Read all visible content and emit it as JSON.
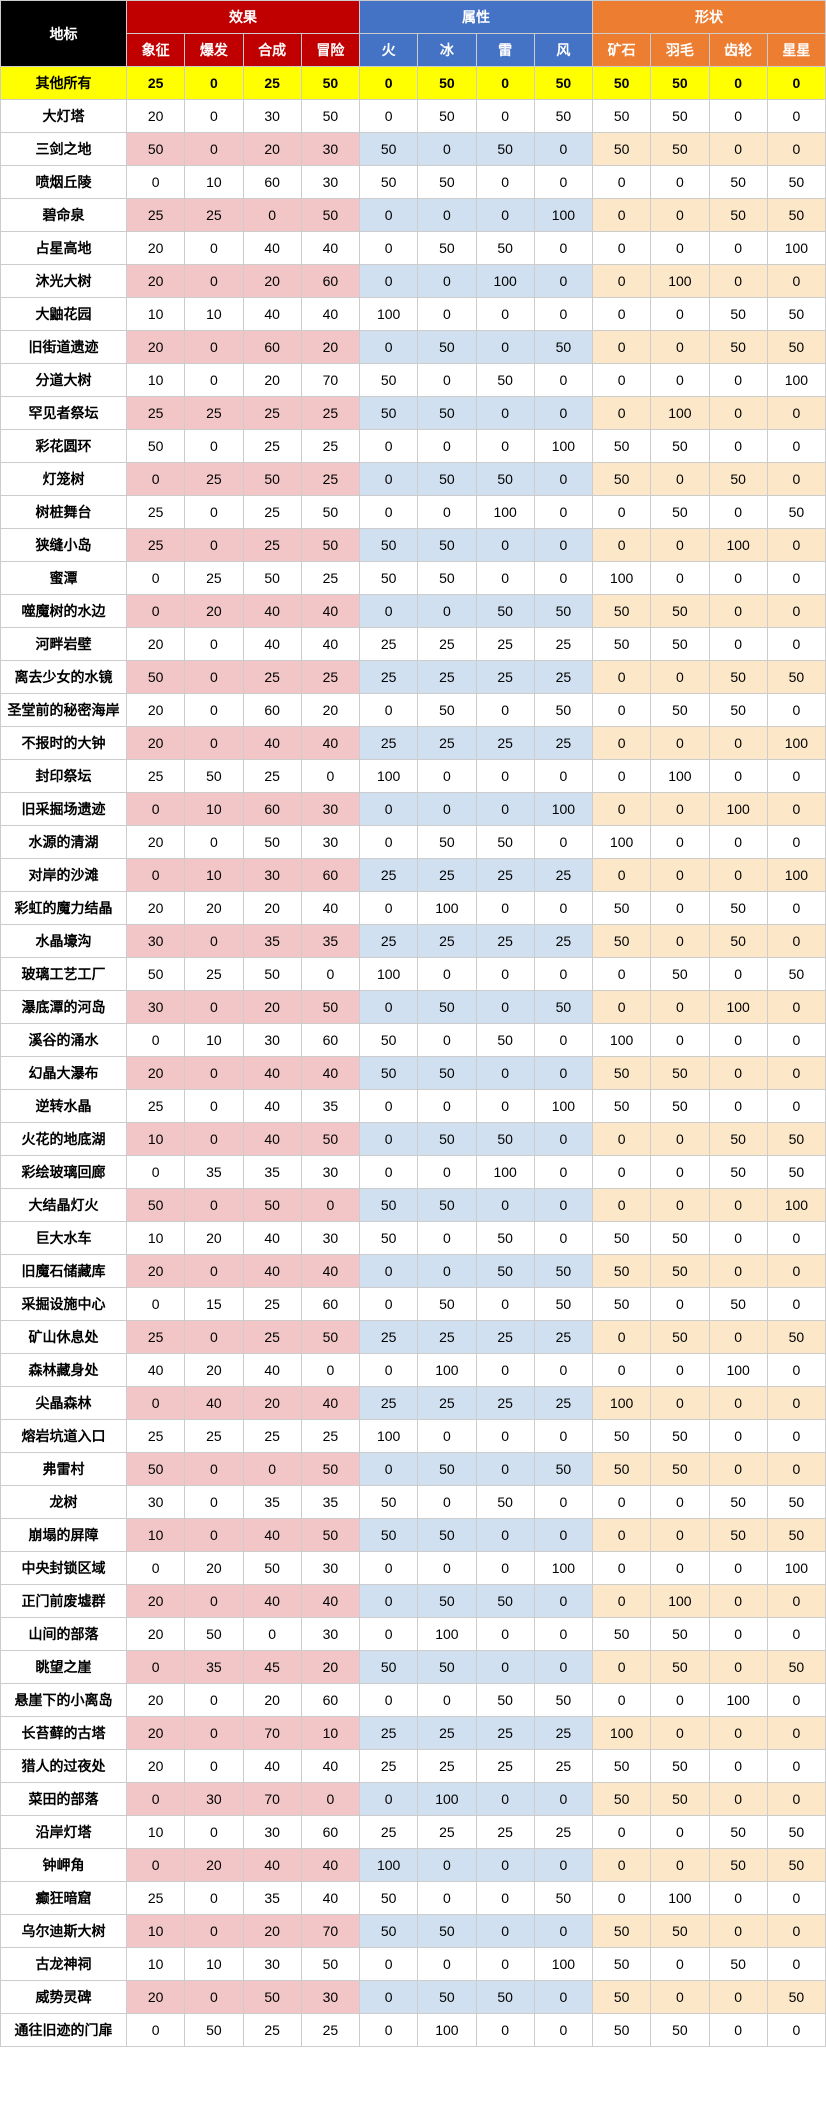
{
  "headers": {
    "landmark": "地标",
    "groups": [
      {
        "label": "效果",
        "class": "h-effect",
        "sub": [
          "象征",
          "爆发",
          "合成",
          "冒险"
        ],
        "subclass": "sub-effect"
      },
      {
        "label": "属性",
        "class": "h-attr",
        "sub": [
          "火",
          "冰",
          "雷",
          "风"
        ],
        "subclass": "sub-attr"
      },
      {
        "label": "形状",
        "class": "h-shape",
        "sub": [
          "矿石",
          "羽毛",
          "齿轮",
          "星星"
        ],
        "subclass": "sub-shape"
      }
    ]
  },
  "highlight_row": {
    "name": "其他所有",
    "v": [
      25,
      0,
      25,
      50,
      0,
      50,
      0,
      50,
      50,
      50,
      0,
      0
    ]
  },
  "rows": [
    {
      "name": "大灯塔",
      "v": [
        20,
        0,
        30,
        50,
        0,
        50,
        0,
        50,
        50,
        50,
        0,
        0
      ],
      "hl": false
    },
    {
      "name": "三剑之地",
      "v": [
        50,
        0,
        20,
        30,
        50,
        0,
        50,
        0,
        50,
        50,
        0,
        0
      ],
      "hl": true
    },
    {
      "name": "喷烟丘陵",
      "v": [
        0,
        10,
        60,
        30,
        50,
        50,
        0,
        0,
        0,
        0,
        50,
        50
      ],
      "hl": false
    },
    {
      "name": "碧命泉",
      "v": [
        25,
        25,
        0,
        50,
        0,
        0,
        0,
        100,
        0,
        0,
        50,
        50
      ],
      "hl": true
    },
    {
      "name": "占星高地",
      "v": [
        20,
        0,
        40,
        40,
        0,
        50,
        50,
        0,
        0,
        0,
        0,
        100
      ],
      "hl": false
    },
    {
      "name": "沐光大树",
      "v": [
        20,
        0,
        20,
        60,
        0,
        0,
        100,
        0,
        0,
        100,
        0,
        0
      ],
      "hl": true
    },
    {
      "name": "大鼬花园",
      "v": [
        10,
        10,
        40,
        40,
        100,
        0,
        0,
        0,
        0,
        0,
        50,
        50
      ],
      "hl": false
    },
    {
      "name": "旧街道遗迹",
      "v": [
        20,
        0,
        60,
        20,
        0,
        50,
        0,
        50,
        0,
        0,
        50,
        50
      ],
      "hl": true
    },
    {
      "name": "分道大树",
      "v": [
        10,
        0,
        20,
        70,
        50,
        0,
        50,
        0,
        0,
        0,
        0,
        100
      ],
      "hl": false
    },
    {
      "name": "罕见者祭坛",
      "v": [
        25,
        25,
        25,
        25,
        50,
        50,
        0,
        0,
        0,
        100,
        0,
        0
      ],
      "hl": true
    },
    {
      "name": "彩花圆环",
      "v": [
        50,
        0,
        25,
        25,
        0,
        0,
        0,
        100,
        50,
        50,
        0,
        0
      ],
      "hl": false
    },
    {
      "name": "灯笼树",
      "v": [
        0,
        25,
        50,
        25,
        0,
        50,
        50,
        0,
        50,
        0,
        50,
        0
      ],
      "hl": true
    },
    {
      "name": "树桩舞台",
      "v": [
        25,
        0,
        25,
        50,
        0,
        0,
        100,
        0,
        0,
        50,
        0,
        50
      ],
      "hl": false
    },
    {
      "name": "狭缝小岛",
      "v": [
        25,
        0,
        25,
        50,
        50,
        50,
        0,
        0,
        0,
        0,
        100,
        0
      ],
      "hl": true
    },
    {
      "name": "蜜潭",
      "v": [
        0,
        25,
        50,
        25,
        50,
        50,
        0,
        0,
        100,
        0,
        0,
        0
      ],
      "hl": false
    },
    {
      "name": "噬魔树的水边",
      "v": [
        0,
        20,
        40,
        40,
        0,
        0,
        50,
        50,
        50,
        50,
        0,
        0
      ],
      "hl": true
    },
    {
      "name": "河畔岩壁",
      "v": [
        20,
        0,
        40,
        40,
        25,
        25,
        25,
        25,
        50,
        50,
        0,
        0
      ],
      "hl": false
    },
    {
      "name": "离去少女的水镜",
      "v": [
        50,
        0,
        25,
        25,
        25,
        25,
        25,
        25,
        0,
        0,
        50,
        50
      ],
      "hl": true
    },
    {
      "name": "圣堂前的秘密海岸",
      "v": [
        20,
        0,
        60,
        20,
        0,
        50,
        0,
        50,
        0,
        50,
        50,
        0
      ],
      "hl": false
    },
    {
      "name": "不报时的大钟",
      "v": [
        20,
        0,
        40,
        40,
        25,
        25,
        25,
        25,
        0,
        0,
        0,
        100
      ],
      "hl": true
    },
    {
      "name": "封印祭坛",
      "v": [
        25,
        50,
        25,
        0,
        100,
        0,
        0,
        0,
        0,
        100,
        0,
        0
      ],
      "hl": false
    },
    {
      "name": "旧采掘场遗迹",
      "v": [
        0,
        10,
        60,
        30,
        0,
        0,
        0,
        100,
        0,
        0,
        100,
        0
      ],
      "hl": true
    },
    {
      "name": "水源的清湖",
      "v": [
        20,
        0,
        50,
        30,
        0,
        50,
        50,
        0,
        100,
        0,
        0,
        0
      ],
      "hl": false
    },
    {
      "name": "对岸的沙滩",
      "v": [
        0,
        10,
        30,
        60,
        25,
        25,
        25,
        25,
        0,
        0,
        0,
        100
      ],
      "hl": true
    },
    {
      "name": "彩虹的魔力结晶",
      "v": [
        20,
        20,
        20,
        40,
        0,
        100,
        0,
        0,
        50,
        0,
        50,
        0
      ],
      "hl": false
    },
    {
      "name": "水晶壕沟",
      "v": [
        30,
        0,
        35,
        35,
        25,
        25,
        25,
        25,
        50,
        0,
        50,
        0
      ],
      "hl": true
    },
    {
      "name": "玻璃工艺工厂",
      "v": [
        50,
        25,
        50,
        0,
        100,
        0,
        0,
        0,
        0,
        50,
        0,
        50
      ],
      "hl": false
    },
    {
      "name": "瀑底潭的河岛",
      "v": [
        30,
        0,
        20,
        50,
        0,
        50,
        0,
        50,
        0,
        0,
        100,
        0
      ],
      "hl": true
    },
    {
      "name": "溪谷的涌水",
      "v": [
        0,
        10,
        30,
        60,
        50,
        0,
        50,
        0,
        100,
        0,
        0,
        0
      ],
      "hl": false
    },
    {
      "name": "幻晶大瀑布",
      "v": [
        20,
        0,
        40,
        40,
        50,
        50,
        0,
        0,
        50,
        50,
        0,
        0
      ],
      "hl": true
    },
    {
      "name": "逆转水晶",
      "v": [
        25,
        0,
        40,
        35,
        0,
        0,
        0,
        100,
        50,
        50,
        0,
        0
      ],
      "hl": false
    },
    {
      "name": "火花的地底湖",
      "v": [
        10,
        0,
        40,
        50,
        0,
        50,
        50,
        0,
        0,
        0,
        50,
        50
      ],
      "hl": true
    },
    {
      "name": "彩绘玻璃回廊",
      "v": [
        0,
        35,
        35,
        30,
        0,
        0,
        100,
        0,
        0,
        0,
        50,
        50
      ],
      "hl": false
    },
    {
      "name": "大结晶灯火",
      "v": [
        50,
        0,
        50,
        0,
        50,
        50,
        0,
        0,
        0,
        0,
        0,
        100
      ],
      "hl": true
    },
    {
      "name": "巨大水车",
      "v": [
        10,
        20,
        40,
        30,
        50,
        0,
        50,
        0,
        50,
        50,
        0,
        0
      ],
      "hl": false
    },
    {
      "name": "旧魔石储藏库",
      "v": [
        20,
        0,
        40,
        40,
        0,
        0,
        50,
        50,
        50,
        50,
        0,
        0
      ],
      "hl": true
    },
    {
      "name": "采掘设施中心",
      "v": [
        0,
        15,
        25,
        60,
        0,
        50,
        0,
        50,
        50,
        0,
        50,
        0
      ],
      "hl": false
    },
    {
      "name": "矿山休息处",
      "v": [
        25,
        0,
        25,
        50,
        25,
        25,
        25,
        25,
        0,
        50,
        0,
        50
      ],
      "hl": true
    },
    {
      "name": "森林藏身处",
      "v": [
        40,
        20,
        40,
        0,
        0,
        100,
        0,
        0,
        0,
        0,
        100,
        0
      ],
      "hl": false
    },
    {
      "name": "尖晶森林",
      "v": [
        0,
        40,
        20,
        40,
        25,
        25,
        25,
        25,
        100,
        0,
        0,
        0
      ],
      "hl": true
    },
    {
      "name": "熔岩坑道入口",
      "v": [
        25,
        25,
        25,
        25,
        100,
        0,
        0,
        0,
        50,
        50,
        0,
        0
      ],
      "hl": false
    },
    {
      "name": "弗雷村",
      "v": [
        50,
        0,
        0,
        50,
        0,
        50,
        0,
        50,
        50,
        50,
        0,
        0
      ],
      "hl": true
    },
    {
      "name": "龙树",
      "v": [
        30,
        0,
        35,
        35,
        50,
        0,
        50,
        0,
        0,
        0,
        50,
        50
      ],
      "hl": false
    },
    {
      "name": "崩塌的屏障",
      "v": [
        10,
        0,
        40,
        50,
        50,
        50,
        0,
        0,
        0,
        0,
        50,
        50
      ],
      "hl": true
    },
    {
      "name": "中央封锁区域",
      "v": [
        0,
        20,
        50,
        30,
        0,
        0,
        0,
        100,
        0,
        0,
        0,
        100
      ],
      "hl": false
    },
    {
      "name": "正门前废墟群",
      "v": [
        20,
        0,
        40,
        40,
        0,
        50,
        50,
        0,
        0,
        100,
        0,
        0
      ],
      "hl": true
    },
    {
      "name": "山间的部落",
      "v": [
        20,
        50,
        0,
        30,
        0,
        100,
        0,
        0,
        50,
        50,
        0,
        0
      ],
      "hl": false
    },
    {
      "name": "眺望之崖",
      "v": [
        0,
        35,
        45,
        20,
        50,
        50,
        0,
        0,
        0,
        50,
        0,
        50
      ],
      "hl": true
    },
    {
      "name": "悬崖下的小离岛",
      "v": [
        20,
        0,
        20,
        60,
        0,
        0,
        50,
        50,
        0,
        0,
        100,
        0
      ],
      "hl": false
    },
    {
      "name": "长苔藓的古塔",
      "v": [
        20,
        0,
        70,
        10,
        25,
        25,
        25,
        25,
        100,
        0,
        0,
        0
      ],
      "hl": true
    },
    {
      "name": "猎人的过夜处",
      "v": [
        20,
        0,
        40,
        40,
        25,
        25,
        25,
        25,
        50,
        50,
        0,
        0
      ],
      "hl": false
    },
    {
      "name": "菜田的部落",
      "v": [
        0,
        30,
        70,
        0,
        0,
        100,
        0,
        0,
        50,
        50,
        0,
        0
      ],
      "hl": true
    },
    {
      "name": "沿岸灯塔",
      "v": [
        10,
        0,
        30,
        60,
        25,
        25,
        25,
        25,
        0,
        0,
        50,
        50
      ],
      "hl": false
    },
    {
      "name": "钟岬角",
      "v": [
        0,
        20,
        40,
        40,
        100,
        0,
        0,
        0,
        0,
        0,
        50,
        50
      ],
      "hl": true
    },
    {
      "name": "癫狂暗窟",
      "v": [
        25,
        0,
        35,
        40,
        50,
        0,
        0,
        50,
        0,
        100,
        0,
        0
      ],
      "hl": false
    },
    {
      "name": "乌尔迪斯大树",
      "v": [
        10,
        0,
        20,
        70,
        50,
        50,
        0,
        0,
        50,
        50,
        0,
        0
      ],
      "hl": true
    },
    {
      "name": "古龙神祠",
      "v": [
        10,
        10,
        30,
        50,
        0,
        0,
        0,
        100,
        50,
        0,
        50,
        0
      ],
      "hl": false
    },
    {
      "name": "威势灵碑",
      "v": [
        20,
        0,
        50,
        30,
        0,
        50,
        50,
        0,
        50,
        0,
        0,
        50
      ],
      "hl": true
    },
    {
      "name": "通往旧迹的门扉",
      "v": [
        0,
        50,
        25,
        25,
        0,
        100,
        0,
        0,
        50,
        50,
        0,
        0
      ],
      "hl": false
    }
  ],
  "colors": {
    "effect_hl": "#f2c6c6",
    "attr_hl": "#d0e0f0",
    "shape_hl": "#fce8c8",
    "yellow": "#ffff00"
  }
}
